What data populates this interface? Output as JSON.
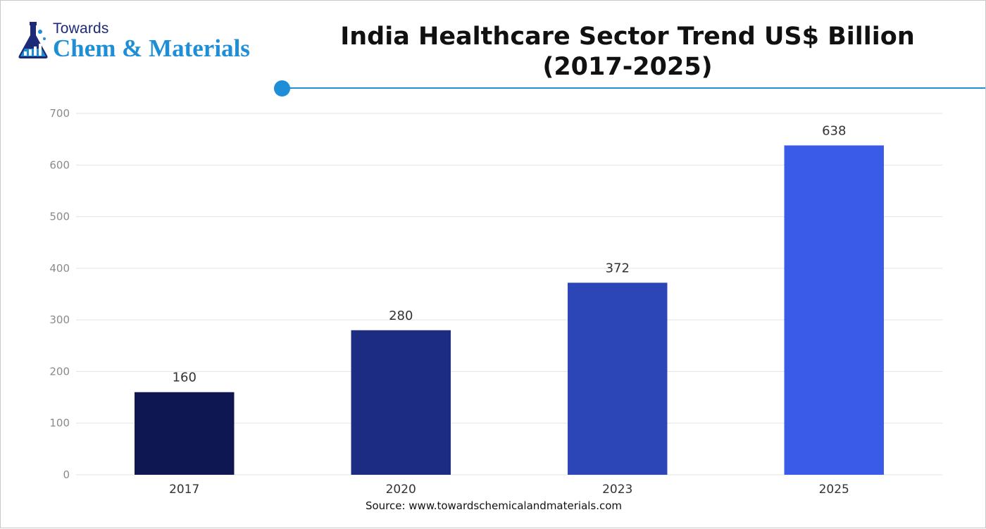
{
  "logo": {
    "top_text": "Towards",
    "main_text": "Chem & Materials"
  },
  "colors": {
    "accent": "#1e8fd6",
    "grid": "#e3e3e3",
    "axis_text": "#8a8a8a",
    "bar_colors": [
      "#0f1752",
      "#1c2c83",
      "#2c46b8",
      "#3a5ae8"
    ]
  },
  "chart_data": {
    "type": "bar",
    "title_line1": "India Healthcare Sector Trend US$ Billion",
    "title_line2": "(2017-2025)",
    "categories": [
      "2017",
      "2020",
      "2023",
      "2025"
    ],
    "values": [
      160,
      280,
      372,
      638
    ],
    "value_labels": [
      "160",
      "280",
      "372",
      "638"
    ],
    "ylim": [
      0,
      700
    ],
    "yticks": [
      0,
      100,
      200,
      300,
      400,
      500,
      600,
      700
    ],
    "xlabel": "",
    "ylabel": "",
    "grid": true,
    "legend": "none"
  },
  "source": "Source: www.towardschemicalandmaterials.com"
}
